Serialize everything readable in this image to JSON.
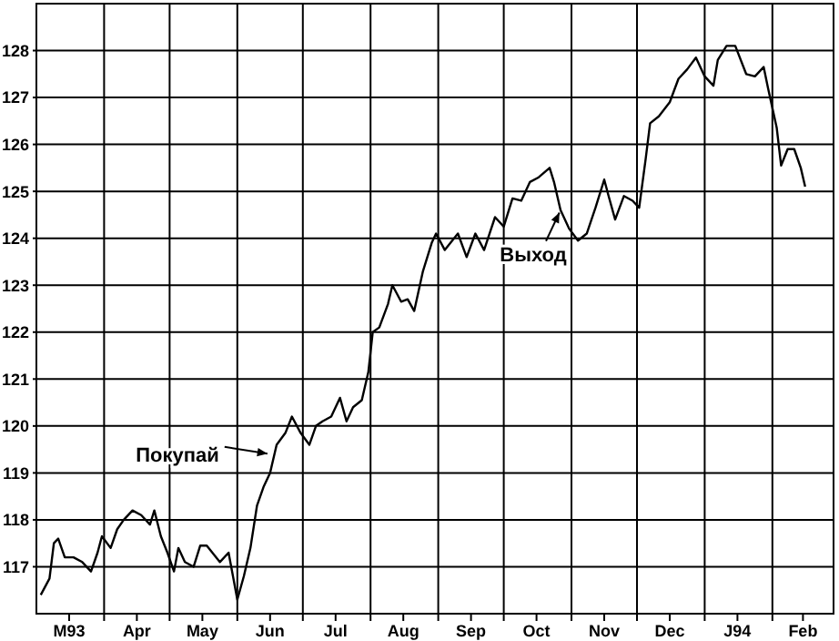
{
  "chart_data": {
    "type": "line",
    "xlim": [
      "1993-03-01",
      "1994-03-01"
    ],
    "ylim": [
      116,
      129
    ],
    "yticks": [
      117,
      118,
      119,
      120,
      121,
      122,
      123,
      124,
      125,
      126,
      127,
      128
    ],
    "xticks": [
      {
        "value": "1993-03-16",
        "label": "M93"
      },
      {
        "value": "1993-04-01",
        "label": null
      },
      {
        "value": "1993-04-16",
        "label": "Apr"
      },
      {
        "value": "1993-05-01",
        "label": null
      },
      {
        "value": "1993-05-16",
        "label": "May"
      },
      {
        "value": "1993-06-01",
        "label": null
      },
      {
        "value": "1993-06-16",
        "label": "Jun"
      },
      {
        "value": "1993-07-01",
        "label": null
      },
      {
        "value": "1993-07-16",
        "label": "Jul"
      },
      {
        "value": "1993-08-01",
        "label": null
      },
      {
        "value": "1993-08-16",
        "label": "Aug"
      },
      {
        "value": "1993-09-01",
        "label": null
      },
      {
        "value": "1993-09-16",
        "label": "Sep"
      },
      {
        "value": "1993-10-01",
        "label": null
      },
      {
        "value": "1993-10-16",
        "label": "Oct"
      },
      {
        "value": "1993-11-01",
        "label": null
      },
      {
        "value": "1993-11-16",
        "label": "Nov"
      },
      {
        "value": "1993-12-01",
        "label": null
      },
      {
        "value": "1993-12-16",
        "label": "Dec"
      },
      {
        "value": "1994-01-01",
        "label": null
      },
      {
        "value": "1994-01-16",
        "label": "J94"
      },
      {
        "value": "1994-02-01",
        "label": null
      },
      {
        "value": "1994-02-15",
        "label": "Feb"
      }
    ],
    "grid": true,
    "marker": "none",
    "line_style": "solid",
    "x": [
      "1993-03-03",
      "1993-03-07",
      "1993-03-09",
      "1993-03-11",
      "1993-03-14",
      "1993-03-18",
      "1993-03-22",
      "1993-03-26",
      "1993-03-29",
      "1993-03-31",
      "1993-04-04",
      "1993-04-07",
      "1993-04-10",
      "1993-04-14",
      "1993-04-18",
      "1993-04-22",
      "1993-04-24",
      "1993-04-27",
      "1993-04-30",
      "1993-05-03",
      "1993-05-05",
      "1993-05-08",
      "1993-05-12",
      "1993-05-15",
      "1993-05-18",
      "1993-05-24",
      "1993-05-28",
      "1993-06-01",
      "1993-06-04",
      "1993-06-07",
      "1993-06-10",
      "1993-06-13",
      "1993-06-16",
      "1993-06-19",
      "1993-06-23",
      "1993-06-26",
      "1993-06-30",
      "1993-07-04",
      "1993-07-07",
      "1993-07-10",
      "1993-07-14",
      "1993-07-18",
      "1993-07-21",
      "1993-07-24",
      "1993-07-28",
      "1993-07-31",
      "1993-08-02",
      "1993-08-05",
      "1993-08-09",
      "1993-08-11",
      "1993-08-15",
      "1993-08-18",
      "1993-08-21",
      "1993-08-25",
      "1993-08-29",
      "1993-08-31",
      "1993-09-04",
      "1993-09-10",
      "1993-09-14",
      "1993-09-18",
      "1993-09-22",
      "1993-09-27",
      "1993-10-01",
      "1993-10-05",
      "1993-10-09",
      "1993-10-13",
      "1993-10-17",
      "1993-10-22",
      "1993-10-24",
      "1993-10-27",
      "1993-10-31",
      "1993-11-04",
      "1993-11-08",
      "1993-11-12",
      "1993-11-16",
      "1993-11-18",
      "1993-11-21",
      "1993-11-25",
      "1993-11-29",
      "1993-12-02",
      "1993-12-05",
      "1993-12-07",
      "1993-12-11",
      "1993-12-16",
      "1993-12-20",
      "1993-12-24",
      "1993-12-28",
      "1994-01-01",
      "1994-01-05",
      "1994-01-07",
      "1994-01-11",
      "1994-01-15",
      "1994-01-20",
      "1994-01-24",
      "1994-01-28",
      "1994-01-30",
      "1994-02-03",
      "1994-02-05",
      "1994-02-08",
      "1994-02-11",
      "1994-02-14",
      "1994-02-16"
    ],
    "series": [
      {
        "color": "#000000",
        "values": [
          116.4,
          116.75,
          117.5,
          117.6,
          117.2,
          117.2,
          117.1,
          116.9,
          117.3,
          117.65,
          117.4,
          117.8,
          118.0,
          118.2,
          118.1,
          117.9,
          118.2,
          117.65,
          117.3,
          116.9,
          117.4,
          117.1,
          117.0,
          117.45,
          117.45,
          117.1,
          117.3,
          116.3,
          116.8,
          117.4,
          118.3,
          118.7,
          119.0,
          119.6,
          119.85,
          120.2,
          119.85,
          119.6,
          120.0,
          120.1,
          120.2,
          120.6,
          120.1,
          120.4,
          120.55,
          121.15,
          122.0,
          122.1,
          122.6,
          123.0,
          122.65,
          122.7,
          122.45,
          123.3,
          123.9,
          124.1,
          123.75,
          124.1,
          123.6,
          124.1,
          123.75,
          124.45,
          124.25,
          124.85,
          124.8,
          125.2,
          125.3,
          125.5,
          125.2,
          124.6,
          124.2,
          123.95,
          124.1,
          124.65,
          125.25,
          124.9,
          124.4,
          124.9,
          124.8,
          124.65,
          125.7,
          126.45,
          126.6,
          126.9,
          127.4,
          127.6,
          127.85,
          127.45,
          127.25,
          127.8,
          128.1,
          128.1,
          127.5,
          127.45,
          127.65,
          127.2,
          126.35,
          125.55,
          125.9,
          125.9,
          125.5,
          125.1
        ]
      }
    ],
    "annotations": [
      {
        "text": "Покупай",
        "x": "1993-06-16",
        "y": 119.4
      },
      {
        "text": "Выход",
        "x": "1993-10-27",
        "y": 124.6
      }
    ]
  }
}
